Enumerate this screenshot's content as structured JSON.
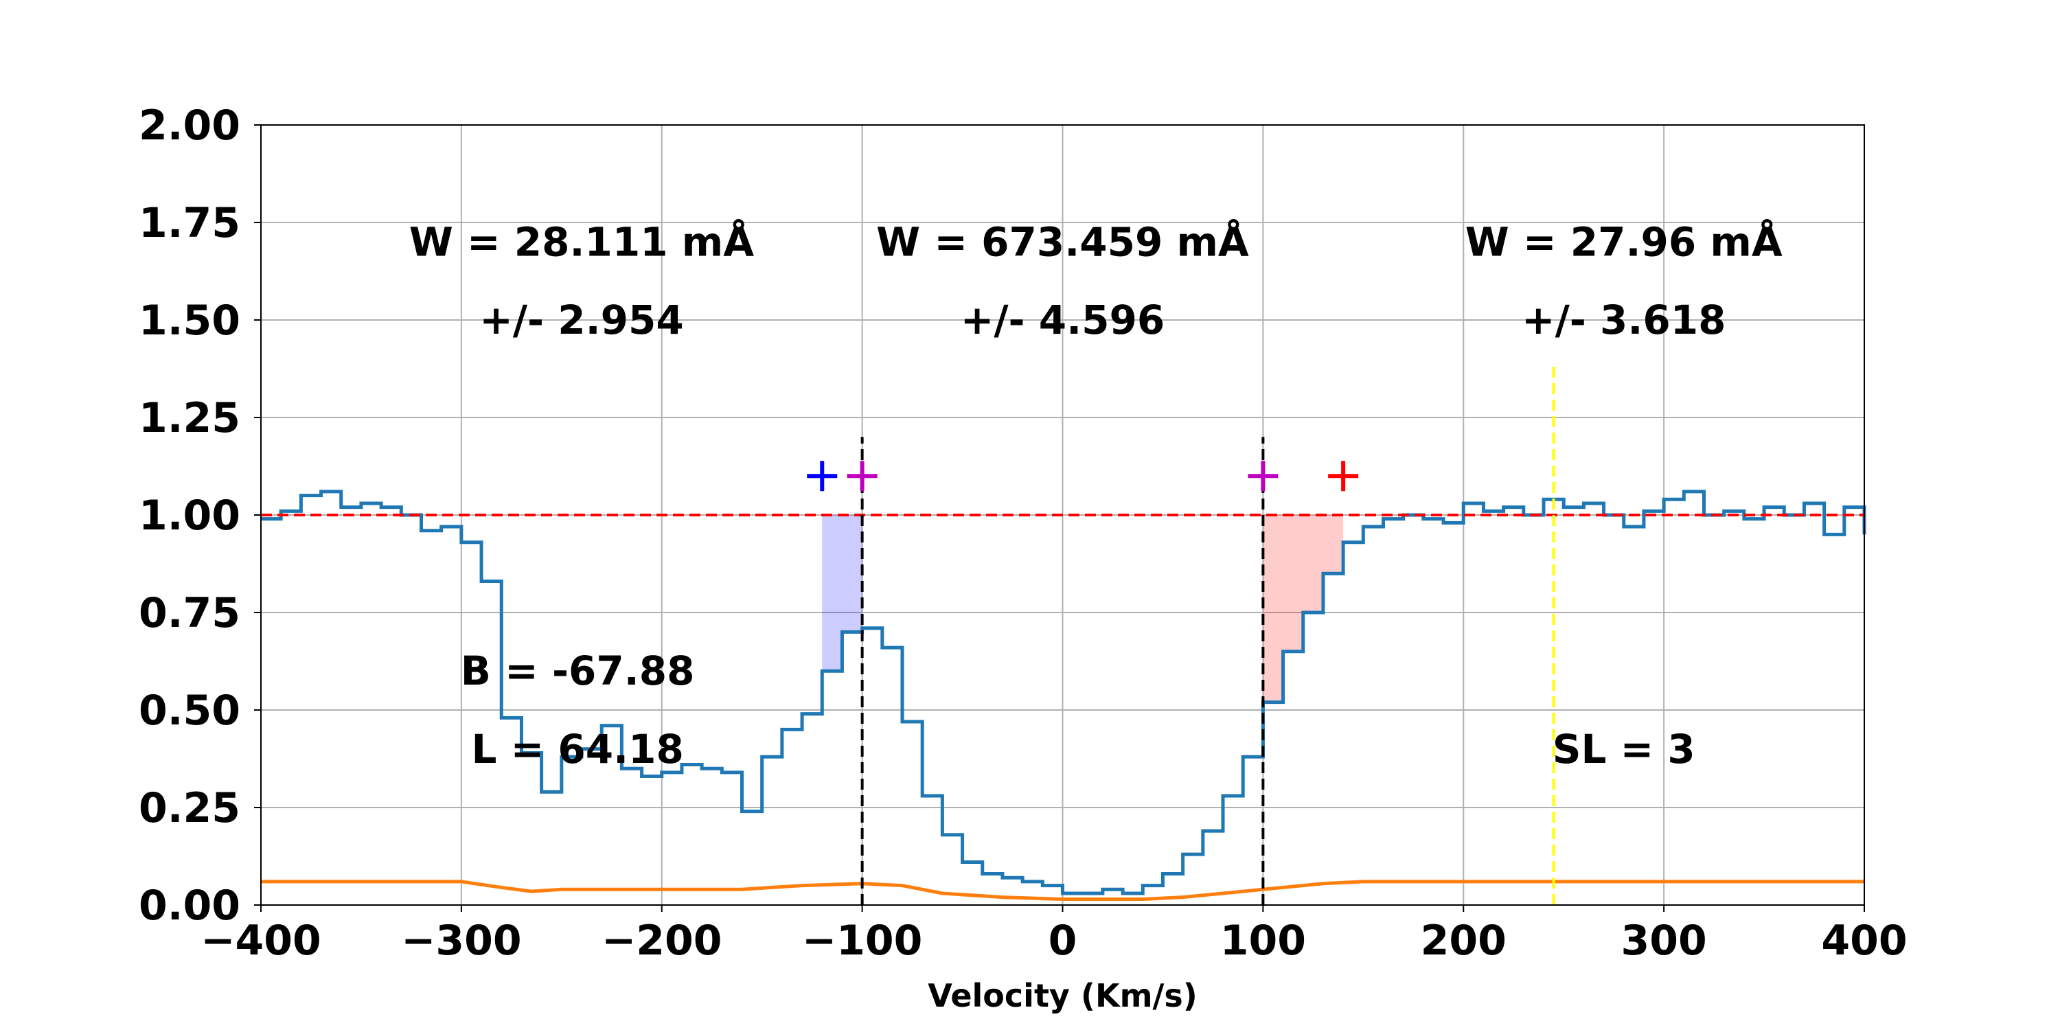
{
  "chart_data": {
    "type": "line",
    "title": "",
    "xlabel": "Velocity (Km/s)",
    "ylabel": "",
    "xlim": [
      -400,
      400
    ],
    "ylim": [
      0,
      2
    ],
    "grid": true,
    "x_ticks": [
      -400,
      -300,
      -200,
      -100,
      0,
      100,
      200,
      300,
      400
    ],
    "x_tick_labels": [
      "−400",
      "−300",
      "−200",
      "−100",
      "0",
      "100",
      "200",
      "300",
      "400"
    ],
    "y_ticks": [
      0,
      0.25,
      0.5,
      0.75,
      1.0,
      1.25,
      1.5,
      1.75,
      2.0
    ],
    "y_tick_labels": [
      "0.00",
      "0.25",
      "0.50",
      "0.75",
      "1.00",
      "1.25",
      "1.50",
      "1.75",
      "2.00"
    ],
    "series": [
      {
        "kind": "flux-step",
        "color": "#1f77b4",
        "x": [
          -400,
          -390,
          -380,
          -370,
          -360,
          -350,
          -340,
          -330,
          -320,
          -310,
          -300,
          -290,
          -280,
          -270,
          -260,
          -250,
          -240,
          -230,
          -220,
          -210,
          -200,
          -190,
          -180,
          -170,
          -160,
          -150,
          -140,
          -130,
          -120,
          -110,
          -100,
          -90,
          -80,
          -70,
          -60,
          -50,
          -40,
          -30,
          -20,
          -10,
          0,
          10,
          20,
          30,
          40,
          50,
          60,
          70,
          80,
          90,
          100,
          110,
          120,
          130,
          140,
          150,
          160,
          170,
          180,
          190,
          200,
          210,
          220,
          230,
          240,
          250,
          260,
          270,
          280,
          290,
          300,
          310,
          320,
          330,
          340,
          350,
          360,
          370,
          380,
          390,
          400
        ],
        "y": [
          0.99,
          1.01,
          1.05,
          1.06,
          1.02,
          1.03,
          1.02,
          1.0,
          0.96,
          0.97,
          0.93,
          0.83,
          0.48,
          0.39,
          0.29,
          0.38,
          0.4,
          0.46,
          0.35,
          0.33,
          0.34,
          0.36,
          0.35,
          0.34,
          0.24,
          0.38,
          0.45,
          0.49,
          0.6,
          0.7,
          0.71,
          0.66,
          0.47,
          0.28,
          0.18,
          0.11,
          0.08,
          0.07,
          0.06,
          0.05,
          0.03,
          0.03,
          0.04,
          0.03,
          0.05,
          0.08,
          0.13,
          0.19,
          0.28,
          0.38,
          0.52,
          0.65,
          0.75,
          0.85,
          0.93,
          0.97,
          0.99,
          1.0,
          0.99,
          0.98,
          1.03,
          1.01,
          1.02,
          1.0,
          1.04,
          1.02,
          1.03,
          1.0,
          0.97,
          1.01,
          1.04,
          1.06,
          1.0,
          1.01,
          0.99,
          1.02,
          1.0,
          1.03,
          0.95,
          1.02,
          0.95
        ]
      },
      {
        "kind": "error",
        "color": "#ff7f0e",
        "x": [
          -400,
          -340,
          -300,
          -280,
          -265,
          -250,
          -200,
          -160,
          -130,
          -100,
          -80,
          -60,
          -30,
          0,
          20,
          40,
          60,
          80,
          100,
          130,
          150,
          200,
          250,
          300,
          350,
          400
        ],
        "y": [
          0.06,
          0.06,
          0.06,
          0.045,
          0.035,
          0.04,
          0.04,
          0.04,
          0.05,
          0.055,
          0.05,
          0.03,
          0.02,
          0.015,
          0.015,
          0.015,
          0.02,
          0.03,
          0.04,
          0.055,
          0.06,
          0.06,
          0.06,
          0.06,
          0.06,
          0.06
        ]
      }
    ],
    "continuum": {
      "y": 1.0,
      "color": "#ff0000",
      "style": "dashed"
    },
    "integration_limits": {
      "x": [
        -100,
        100
      ],
      "y_top": 1.2,
      "color": "#000000"
    },
    "marker_line": {
      "x": 245,
      "y_top": 1.38,
      "color": "#ffff00"
    },
    "shaded_regions": [
      {
        "x": [
          -120,
          -100
        ],
        "color": "#0000ff",
        "opacity": 0.2
      },
      {
        "x": [
          100,
          140
        ],
        "color": "#ff0000",
        "opacity": 0.2
      }
    ],
    "markers": [
      {
        "x": -120,
        "y": 1.1,
        "color": "#0000ff",
        "symbol": "+"
      },
      {
        "x": -100,
        "y": 1.1,
        "color": "#bf00bf",
        "symbol": "+"
      },
      {
        "x": 100,
        "y": 1.1,
        "color": "#bf00bf",
        "symbol": "+"
      },
      {
        "x": 140,
        "y": 1.1,
        "color": "#ff0000",
        "symbol": "+"
      }
    ],
    "annotations": [
      {
        "text": "W = 28.111 mÅ",
        "x": -240,
        "y": 1.7
      },
      {
        "text": "+/- 2.954",
        "x": -240,
        "y": 1.5
      },
      {
        "text": "W = 673.459 mÅ",
        "x": 0,
        "y": 1.7
      },
      {
        "text": "+/- 4.596",
        "x": 0,
        "y": 1.5
      },
      {
        "text": "W = 27.96 mÅ",
        "x": 280,
        "y": 1.7
      },
      {
        "text": "+/- 3.618",
        "x": 280,
        "y": 1.5
      },
      {
        "text": "B = -67.88",
        "x": -242,
        "y": 0.6
      },
      {
        "text": "L = 64.18",
        "x": -242,
        "y": 0.4
      },
      {
        "text": "SL = 3",
        "x": 280,
        "y": 0.4
      }
    ]
  }
}
